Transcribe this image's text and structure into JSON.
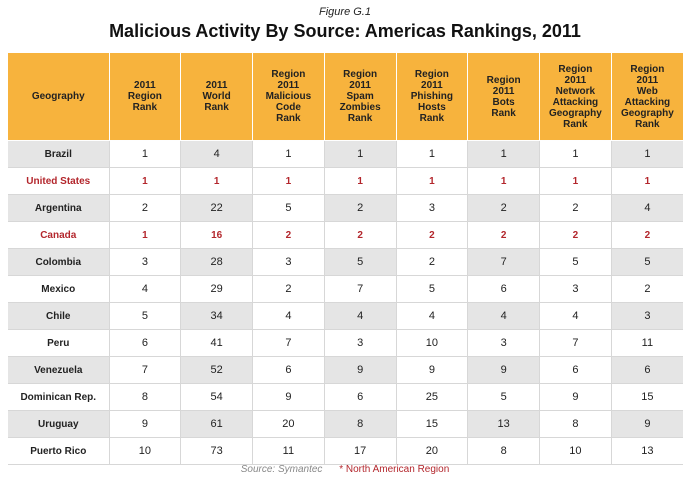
{
  "figure_label": "Figure G.1",
  "title": "Malicious Activity By Source: Americas Rankings, 2011",
  "headers": [
    "Geography",
    "2011\nRegion\nRank",
    "2011\nWorld\nRank",
    "Region\n2011\nMalicious\nCode\nRank",
    "Region\n2011\nSpam\nZombies\nRank",
    "Region\n2011\nPhishing\nHosts\nRank",
    "Region\n2011\nBots\nRank",
    "Region\n2011\nNetwork\nAttacking\nGeography\nRank",
    "Region\n2011\nWeb\nAttacking\nGeography\nRank"
  ],
  "rows": [
    {
      "geo": "Brazil",
      "vals": [
        "1",
        "4",
        "1",
        "1",
        "1",
        "1",
        "1",
        "1"
      ],
      "north_american": false
    },
    {
      "geo": "United States",
      "vals": [
        "1",
        "1",
        "1",
        "1",
        "1",
        "1",
        "1",
        "1"
      ],
      "north_american": true
    },
    {
      "geo": "Argentina",
      "vals": [
        "2",
        "22",
        "5",
        "2",
        "3",
        "2",
        "2",
        "4"
      ],
      "north_american": false
    },
    {
      "geo": "Canada",
      "vals": [
        "1",
        "16",
        "2",
        "2",
        "2",
        "2",
        "2",
        "2"
      ],
      "north_american": true
    },
    {
      "geo": "Colombia",
      "vals": [
        "3",
        "28",
        "3",
        "5",
        "2",
        "7",
        "5",
        "5"
      ],
      "north_american": false
    },
    {
      "geo": "Mexico",
      "vals": [
        "4",
        "29",
        "2",
        "7",
        "5",
        "6",
        "3",
        "2"
      ],
      "north_american": false
    },
    {
      "geo": "Chile",
      "vals": [
        "5",
        "34",
        "4",
        "4",
        "4",
        "4",
        "4",
        "3"
      ],
      "north_american": false
    },
    {
      "geo": "Peru",
      "vals": [
        "6",
        "41",
        "7",
        "3",
        "10",
        "3",
        "7",
        "11"
      ],
      "north_american": false
    },
    {
      "geo": "Venezuela",
      "vals": [
        "7",
        "52",
        "6",
        "9",
        "9",
        "9",
        "6",
        "6"
      ],
      "north_american": false
    },
    {
      "geo": "Dominican Rep.",
      "vals": [
        "8",
        "54",
        "9",
        "6",
        "25",
        "5",
        "9",
        "15"
      ],
      "north_american": false
    },
    {
      "geo": "Uruguay",
      "vals": [
        "9",
        "61",
        "20",
        "8",
        "15",
        "13",
        "8",
        "9"
      ],
      "north_american": false
    },
    {
      "geo": "Puerto Rico",
      "vals": [
        "10",
        "73",
        "11",
        "17",
        "20",
        "8",
        "10",
        "13"
      ],
      "north_american": false
    }
  ],
  "source": "Source: Symantec",
  "note": "* North American Region",
  "colors": {
    "header_bg": "#f7b33d",
    "north_american_text": "#b3262c",
    "stripe": "#e5e5e5"
  }
}
